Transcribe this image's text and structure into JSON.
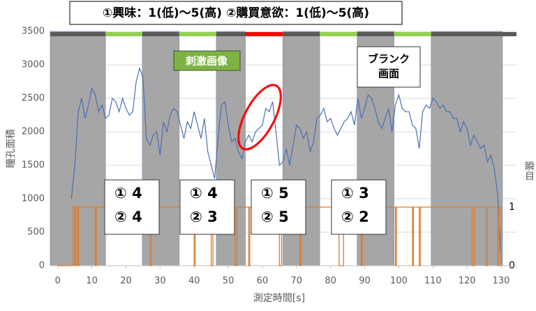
{
  "chart_data": {
    "type": "line",
    "title": "①興味：1(低)〜5(高)  ②購買意欲：1(低)〜5(高)",
    "xlabel": "測定時間[s]",
    "ylabel": "瞳孔面積",
    "y2label": "瞬目",
    "xlim": [
      -2.2,
      134.5
    ],
    "ylim": [
      0,
      3500
    ],
    "y2lim": [
      0,
      4
    ],
    "xticks": [
      0,
      10,
      20,
      30,
      40,
      50,
      60,
      70,
      80,
      90,
      100,
      110,
      120,
      130
    ],
    "yticks": [
      0,
      500,
      1000,
      1500,
      2000,
      2500,
      3000,
      3500
    ],
    "y2ticks": [
      0,
      1
    ],
    "grid": true,
    "shade_color": "#a6a6a6",
    "shaded": [
      [
        -2.2,
        14
      ],
      [
        24.8,
        35.6
      ],
      [
        46.5,
        55
      ],
      [
        66,
        76.8
      ],
      [
        87.8,
        98.6
      ],
      [
        109.5,
        130.4
      ]
    ],
    "top_bar": [
      {
        "start": -2.2,
        "end": 14,
        "color": "#595959"
      },
      {
        "start": 14,
        "end": 24.8,
        "color": "#92d050"
      },
      {
        "start": 24.8,
        "end": 35.6,
        "color": "#595959"
      },
      {
        "start": 35.6,
        "end": 46.5,
        "color": "#92d050"
      },
      {
        "start": 46.5,
        "end": 55,
        "color": "#595959"
      },
      {
        "start": 55,
        "end": 66,
        "color": "#ff0000"
      },
      {
        "start": 66,
        "end": 76.8,
        "color": "#595959"
      },
      {
        "start": 76.8,
        "end": 87.8,
        "color": "#92d050"
      },
      {
        "start": 87.8,
        "end": 98.6,
        "color": "#595959"
      },
      {
        "start": 98.6,
        "end": 109.5,
        "color": "#92d050"
      },
      {
        "start": 109.5,
        "end": 134.5,
        "color": "#595959"
      }
    ],
    "stimulus_label": "刺激画像",
    "blank_label": [
      "ブランク",
      "画面"
    ],
    "score_boxes": [
      [
        "① 4",
        "② 4"
      ],
      [
        "① 4",
        "② 3"
      ],
      [
        "① 5",
        "② 5"
      ],
      [
        "① 3",
        "② 2"
      ]
    ],
    "series": [
      {
        "color": "#4a6fb5",
        "x": [
          4,
          5,
          6,
          7,
          8,
          9,
          10,
          11,
          12,
          13,
          14,
          15,
          16,
          17,
          18,
          19,
          20,
          21,
          22,
          23,
          24,
          25,
          26,
          27,
          28,
          29,
          30,
          31,
          32,
          33,
          34,
          35,
          36,
          37,
          38,
          39,
          40,
          41,
          42,
          43,
          44,
          45,
          46,
          47,
          48,
          49,
          50,
          51,
          52,
          53,
          54,
          55,
          56,
          57,
          58,
          59,
          60,
          61,
          62,
          63,
          64,
          65,
          66,
          67,
          68,
          69,
          70,
          71,
          72,
          73,
          74,
          75,
          76,
          77,
          78,
          79,
          80,
          81,
          82,
          83,
          84,
          85,
          86,
          87,
          88,
          89,
          90,
          91,
          92,
          93,
          94,
          95,
          96,
          97,
          98,
          99,
          100,
          101,
          102,
          103,
          104,
          105,
          106,
          107,
          108,
          109,
          110,
          111,
          112,
          113,
          114,
          115,
          116,
          117,
          118,
          119,
          120,
          121,
          122,
          123,
          124,
          125,
          126,
          127,
          128,
          129,
          130
        ],
        "values": [
          1000,
          1500,
          2300,
          2500,
          2200,
          2400,
          2650,
          2550,
          2300,
          2400,
          2200,
          2250,
          2500,
          2450,
          2300,
          2500,
          2350,
          2250,
          2300,
          2750,
          2950,
          2800,
          1900,
          1800,
          1950,
          2000,
          1650,
          2150,
          2000,
          2250,
          2350,
          2300,
          2100,
          1900,
          2150,
          2050,
          2300,
          2100,
          1900,
          2200,
          1700,
          1500,
          1300,
          1900,
          2400,
          2450,
          2100,
          1850,
          1900,
          1700,
          1600,
          1850,
          1950,
          1850,
          2000,
          2050,
          2100,
          2350,
          2300,
          2450,
          2000,
          1500,
          1550,
          1750,
          1500,
          1800,
          2100,
          2050,
          1900,
          2000,
          1700,
          1850,
          2200,
          2250,
          2350,
          2150,
          2200,
          2050,
          1950,
          2050,
          2150,
          2200,
          2300,
          2100,
          2500,
          2200,
          2350,
          2550,
          2500,
          2350,
          2150,
          2050,
          2200,
          2350,
          2000,
          2400,
          2550,
          2350,
          2300,
          2300,
          2100,
          2050,
          1750,
          2300,
          2400,
          2350,
          2500,
          2450,
          2350,
          2400,
          2300,
          2300,
          2200,
          2200,
          2000,
          2150,
          2050,
          1800,
          1950,
          1850,
          1750,
          1800,
          1550,
          1650,
          1450,
          1050,
          100
        ]
      },
      {
        "color": "#e07b2a",
        "axis": "y2",
        "x": [
          0,
          4.5,
          4.5,
          5.0,
          5.0,
          5.3,
          5.3,
          5.8,
          5.8,
          6.1,
          6.1,
          11.0,
          11.0,
          11.3,
          11.3,
          27.0,
          27.0,
          27.4,
          27.4,
          40.0,
          40.0,
          40.3,
          40.3,
          45.0,
          45.0,
          45.5,
          45.5,
          52.0,
          52.0,
          52.6,
          52.6,
          56.0,
          56.0,
          56.3,
          56.3,
          65.0,
          65.0,
          65.6,
          65.6,
          71.0,
          71.0,
          71.3,
          71.3,
          82.5,
          82.5,
          83.8,
          83.8,
          89.0,
          89.0,
          89.3,
          89.3,
          99.0,
          99.0,
          99.3,
          99.3,
          104.0,
          104.0,
          104.3,
          104.3,
          106.0,
          106.0,
          106.3,
          106.3,
          121.5,
          121.5,
          122.2,
          122.2,
          125.5,
          125.5,
          126.0,
          126.0,
          129.0,
          129.0,
          129.4,
          129.4,
          130.0,
          130.0
        ],
        "values": [
          0,
          0,
          1,
          1,
          0,
          0,
          1,
          1,
          0,
          0,
          1,
          1,
          0,
          0,
          1,
          1,
          0,
          0,
          1,
          1,
          0,
          0,
          1,
          1,
          0,
          0,
          1,
          1,
          0,
          0,
          1,
          1,
          0,
          0,
          1,
          1,
          0,
          0,
          1,
          1,
          0,
          0,
          1,
          1,
          0,
          0,
          1,
          1,
          0,
          0,
          1,
          1,
          0,
          0,
          1,
          1,
          0,
          0,
          1,
          1,
          0,
          0,
          1,
          1,
          0,
          0,
          1,
          1,
          0,
          0,
          1,
          1,
          0,
          0,
          1,
          1,
          0
        ]
      }
    ]
  }
}
